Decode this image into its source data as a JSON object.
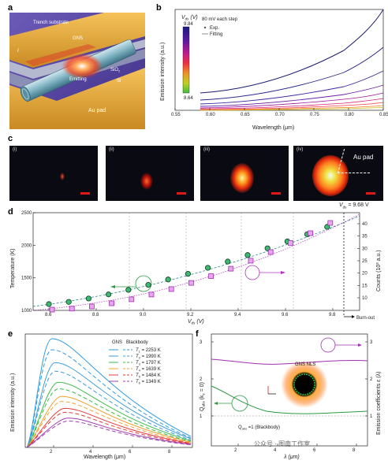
{
  "panel_labels": {
    "a": "a",
    "b": "b",
    "c": "c",
    "d": "d",
    "e": "e",
    "f": "f"
  },
  "panel_a": {
    "labels": {
      "trench_substrate": "Trench substrate",
      "gns": "GNS",
      "trench": "Trench",
      "emitting": "Emitting",
      "sio2": "SiO",
      "sio2_sub": "2",
      "si": "Si",
      "au_pad": "Au pad",
      "ds": "I"
    },
    "colors": {
      "gold": "#e8a83a",
      "bg": "#5b4aa6",
      "tube": "#7fb3c2",
      "glow": "#ff3a10"
    }
  },
  "panel_b": {
    "colorbar_title": "V",
    "colorbar_sub": "ds",
    "colorbar_unit": " (V)",
    "colorbar_max": "9.84",
    "colorbar_min": "8.64",
    "step_note": "80 mV each step",
    "legend_exp": "Exp.",
    "legend_fit": "Fitting",
    "ylabel": "Emission intensity (a.u.)",
    "xlabel": "Wavelength (μm)",
    "xticks": [
      "0.55",
      "0.60",
      "0.65",
      "0.70",
      "0.75",
      "0.80",
      "0.85"
    ]
  },
  "panel_c": {
    "images": [
      {
        "roman": "(i)"
      },
      {
        "roman": "(ii)"
      },
      {
        "roman": "(iii)"
      },
      {
        "roman": "(iv)",
        "annotation": "Au pad"
      }
    ],
    "vds_label": "V",
    "vds_sub": "ds",
    "vds_value": " = 9.68 V"
  },
  "panel_d": {
    "ylabel_left": "Temperature (K)",
    "ylabel_right": "Counts (10³ a.u.)",
    "xlabel": "V",
    "xlabel_sub": "ds",
    "xlabel_unit": " (V)",
    "burnout": "Burn-out",
    "xticks": [
      "8.6",
      "8.8",
      "9.0",
      "9.2",
      "9.4",
      "9.6",
      "9.8"
    ],
    "yticks_left": [
      "1000",
      "1500",
      "2000",
      "2500"
    ],
    "yticks_right": [
      "10",
      "15",
      "20",
      "25",
      "30",
      "35",
      "40"
    ]
  },
  "panel_e": {
    "ylabel": "Emission intensity (a.u.)",
    "xlabel": "Wavelength (μm)",
    "xticks": [
      "2",
      "4",
      "6",
      "8"
    ],
    "legend_head_gns": "GNS",
    "legend_head_bb": "Blackbody",
    "legend": [
      {
        "label": "T",
        "sub": "1",
        "value": " = 2253 K",
        "color": "#2e9be0"
      },
      {
        "label": "T",
        "sub": "2",
        "value": " = 1990 K",
        "color": "#3c9cd8"
      },
      {
        "label": "T",
        "sub": "3",
        "value": " = 1797 K",
        "color": "#3dbb4b"
      },
      {
        "label": "T",
        "sub": "4",
        "value": " = 1639 K",
        "color": "#f0a030"
      },
      {
        "label": "T",
        "sub": "5",
        "value": " = 1484 K",
        "color": "#e8383a"
      },
      {
        "label": "T",
        "sub": "6",
        "value": " = 1349 K",
        "color": "#a040b0"
      }
    ]
  },
  "panel_f": {
    "ylabel_left": "Q",
    "ylabel_left_sub": "abs",
    "ylabel_left_tail": " (k",
    "ylabel_left_tail_sub": "z",
    "ylabel_left_end": " = 0)",
    "ylabel_right": "Emission coefficients ε (λ)",
    "xlabel": "λ (μm)",
    "blackbody_note": "Q",
    "blackbody_sub": "abs",
    "blackbody_tail": " =1 (Blackbody)",
    "gns_nls": "GNS NLS",
    "xticks": [
      "2",
      "4",
      "6",
      "8"
    ],
    "yticks_left": [
      "1",
      "2",
      "3"
    ],
    "yticks_right": [
      "1",
      "2",
      "3"
    ]
  },
  "watermark": "公众号 · 图南工作室"
}
